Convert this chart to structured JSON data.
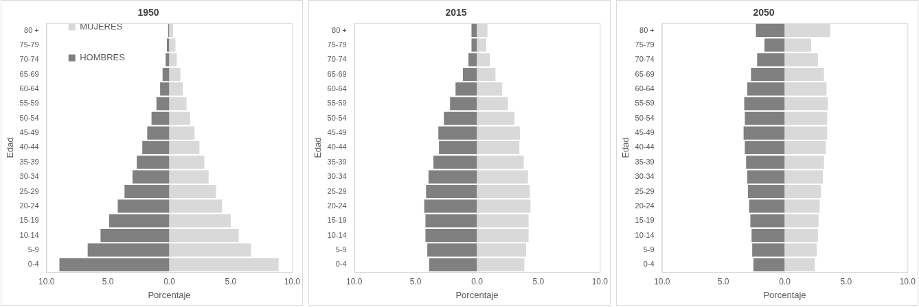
{
  "chart_data": [
    {
      "type": "bar",
      "title": "1950",
      "xlabel": "Porcentaje",
      "ylabel": "Edad",
      "orientation": "horizontal",
      "stacked": true,
      "legend": "top left",
      "categories": [
        "80 +",
        "75-79",
        "70-74",
        "65-69",
        "60-64",
        "55-59",
        "50-54",
        "45-49",
        "40-44",
        "35-39",
        "30-34",
        "25-29",
        "20-24",
        "15-19",
        "10-14",
        "5-9",
        "0-4"
      ],
      "series": [
        {
          "name": "MUJERES",
          "color": "#d9d9d9",
          "values": [
            0.3,
            0.5,
            0.6,
            0.9,
            1.1,
            1.4,
            1.7,
            2.05,
            2.45,
            2.85,
            3.2,
            3.8,
            4.3,
            5.0,
            5.65,
            6.65,
            8.9
          ]
        },
        {
          "name": "HOMBRES",
          "color": "#808080",
          "values": [
            -0.1,
            -0.2,
            -0.3,
            -0.55,
            -0.75,
            -1.05,
            -1.45,
            -1.8,
            -2.2,
            -2.65,
            -3.0,
            -3.65,
            -4.2,
            -4.9,
            -5.6,
            -6.65,
            -8.95
          ]
        }
      ],
      "xlim": [
        -10,
        10
      ],
      "xticks": [
        {
          "value": -10,
          "label": "10.0"
        },
        {
          "value": -5,
          "label": "5.0"
        },
        {
          "value": 0,
          "label": "0.0"
        },
        {
          "value": 5,
          "label": "5.0"
        },
        {
          "value": 10,
          "label": "10.0"
        }
      ]
    },
    {
      "type": "bar",
      "title": "2015",
      "xlabel": "Porcentaje",
      "ylabel": "Edad",
      "orientation": "horizontal",
      "stacked": true,
      "categories": [
        "80 +",
        "75-79",
        "70-74",
        "65-69",
        "60-64",
        "55-59",
        "50-54",
        "45-49",
        "40-44",
        "35-39",
        "30-34",
        "25-29",
        "20-24",
        "15-19",
        "10-14",
        "5-9",
        "0-4"
      ],
      "series": [
        {
          "color": "#d9d9d9",
          "values": [
            0.85,
            0.75,
            1.05,
            1.5,
            2.05,
            2.5,
            3.05,
            3.5,
            3.45,
            3.8,
            4.15,
            4.3,
            4.35,
            4.2,
            4.2,
            4.0,
            3.85
          ]
        },
        {
          "color": "#808080",
          "values": [
            -0.45,
            -0.45,
            -0.7,
            -1.15,
            -1.75,
            -2.2,
            -2.7,
            -3.15,
            -3.1,
            -3.55,
            -3.95,
            -4.15,
            -4.3,
            -4.2,
            -4.2,
            -4.05,
            -3.9
          ]
        }
      ],
      "xlim": [
        -10,
        10
      ],
      "xticks": [
        {
          "value": -10,
          "label": "10.0"
        },
        {
          "value": -5,
          "label": "5.0"
        },
        {
          "value": 0,
          "label": "0.0"
        },
        {
          "value": 5,
          "label": "5.0"
        },
        {
          "value": 10,
          "label": "10.0"
        }
      ]
    },
    {
      "type": "bar",
      "title": "2050",
      "xlabel": "Porcentaje",
      "ylabel": "Edad",
      "orientation": "horizontal",
      "stacked": true,
      "categories": [
        "80 +",
        "75-79",
        "70-74",
        "65-69",
        "60-64",
        "55-59",
        "50-54",
        "45-49",
        "40-44",
        "35-39",
        "30-34",
        "25-29",
        "20-24",
        "15-19",
        "10-14",
        "5-9",
        "0-4"
      ],
      "series": [
        {
          "color": "#d9d9d9",
          "values": [
            3.7,
            2.15,
            2.7,
            3.2,
            3.4,
            3.5,
            3.45,
            3.45,
            3.35,
            3.2,
            3.1,
            2.95,
            2.85,
            2.75,
            2.7,
            2.6,
            2.45
          ]
        },
        {
          "color": "#808080",
          "values": [
            -2.35,
            -1.65,
            -2.25,
            -2.75,
            -3.05,
            -3.3,
            -3.25,
            -3.35,
            -3.25,
            -3.15,
            -3.05,
            -3.0,
            -2.9,
            -2.8,
            -2.7,
            -2.65,
            -2.55
          ]
        }
      ],
      "xlim": [
        -10,
        10
      ],
      "xticks": [
        {
          "value": -10,
          "label": "10.0"
        },
        {
          "value": -5,
          "label": "5.0"
        },
        {
          "value": 0,
          "label": "0.0"
        },
        {
          "value": 5,
          "label": "5.0"
        },
        {
          "value": 10,
          "label": "10.0"
        }
      ]
    }
  ]
}
